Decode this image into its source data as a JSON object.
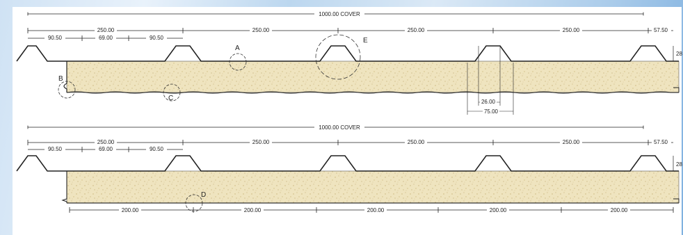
{
  "colors": {
    "core_fill": "#efe4bf",
    "line": "#222222",
    "accent_blue": "#7fb1e0"
  },
  "panel_top": {
    "cover_label": "1000.00 COVER",
    "spacing": [
      "250.00",
      "250.00",
      "250.00",
      "250.00"
    ],
    "end_offset": "57.50",
    "sub_dims": [
      "90.50",
      "69.00",
      "90.50"
    ],
    "rib_height": "28",
    "detail_dims": {
      "rib_top": "26.00",
      "rib_base": "75.00"
    },
    "callouts": [
      "A",
      "B",
      "C",
      "E"
    ]
  },
  "panel_bottom": {
    "cover_label": "1000.00 COVER",
    "spacing": [
      "250.00",
      "250.00",
      "250.00",
      "250.00"
    ],
    "end_offset": "57.50",
    "sub_dims": [
      "90.50",
      "69.00",
      "90.50"
    ],
    "rib_height": "28",
    "bottom_spacing": [
      "200.00",
      "200.00",
      "200.00",
      "200.00",
      "200.00"
    ],
    "callouts": [
      "D"
    ]
  }
}
